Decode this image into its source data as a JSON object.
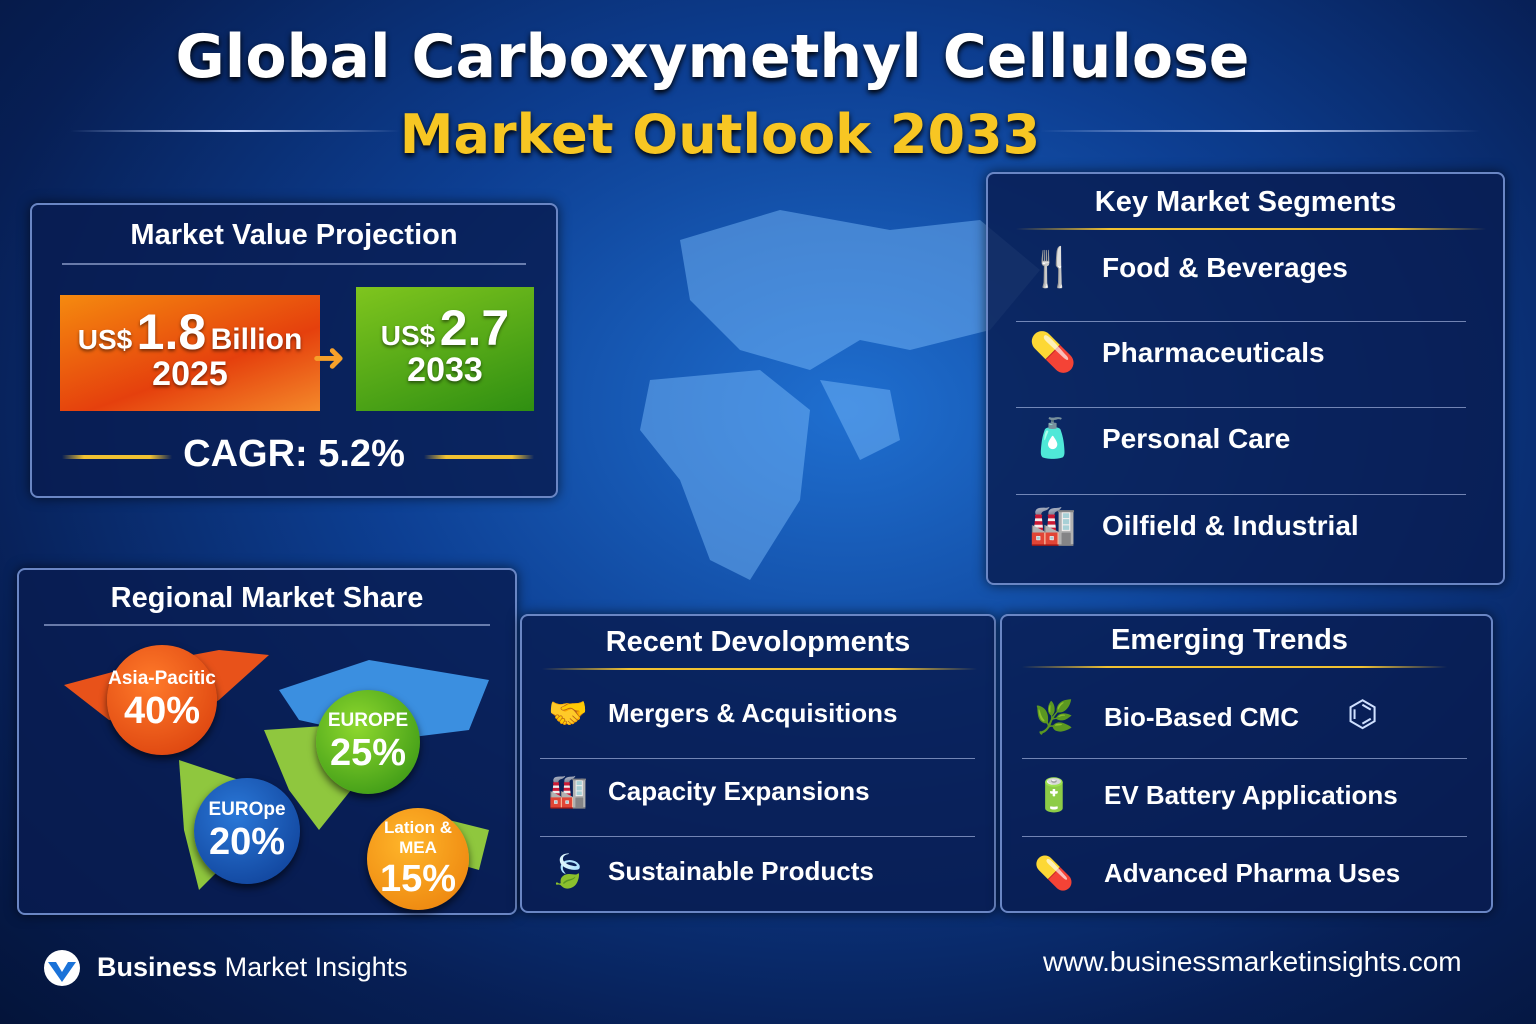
{
  "title": {
    "line1": "Global Carboxymethyl Cellulose",
    "line2": "Market Outlook 2033"
  },
  "market_value": {
    "heading": "Market Value Projection",
    "start": {
      "currency": "US$",
      "value": "1.8",
      "unit": "Billion",
      "year": "2025"
    },
    "end": {
      "currency": "US$",
      "value": "2.7",
      "year": "2033"
    },
    "cagr": "CAGR: 5.2%"
  },
  "segments": {
    "heading": "Key Market Segments",
    "items": [
      {
        "label": "Food & Beverages",
        "icon": "fork-drop-icon"
      },
      {
        "label": "Pharmaceuticals",
        "icon": "pill-bottle-icon"
      },
      {
        "label": "Personal Care",
        "icon": "cosmetic-bottles-icon"
      },
      {
        "label": "Oilfield & Industrial",
        "icon": "oil-rig-icon"
      }
    ]
  },
  "regional": {
    "heading": "Regional Market Share",
    "items": [
      {
        "label": "Asia-Pacitic",
        "value": "40%",
        "color": "#e8460f"
      },
      {
        "label": "EUROPE",
        "value": "25%",
        "color": "#4aa51a"
      },
      {
        "label": "EUROpe",
        "value": "20%",
        "color": "#1550b0"
      },
      {
        "label": "Lation & MEA",
        "value": "15%",
        "color": "#f29a0f"
      }
    ]
  },
  "developments": {
    "heading": "Recent Devolopments",
    "items": [
      {
        "label": "Mergers & Acquisitions",
        "icon": "handshake-icon"
      },
      {
        "label": "Capacity Expansions",
        "icon": "factory-icon"
      },
      {
        "label": "Sustainable Products",
        "icon": "leaf-icon"
      }
    ]
  },
  "trends": {
    "heading": "Emerging Trends",
    "items": [
      {
        "label": "Bio-Based CMC",
        "icon": "leaf-bottle-icon"
      },
      {
        "label": "EV Battery Applications",
        "icon": "ev-battery-icon"
      },
      {
        "label": "Advanced Pharma Uses",
        "icon": "capsule-icon"
      }
    ]
  },
  "footer": {
    "brand_bold": "Business",
    "brand_rest": "Market Insights",
    "url": "www.businessmarketinsights.com"
  }
}
